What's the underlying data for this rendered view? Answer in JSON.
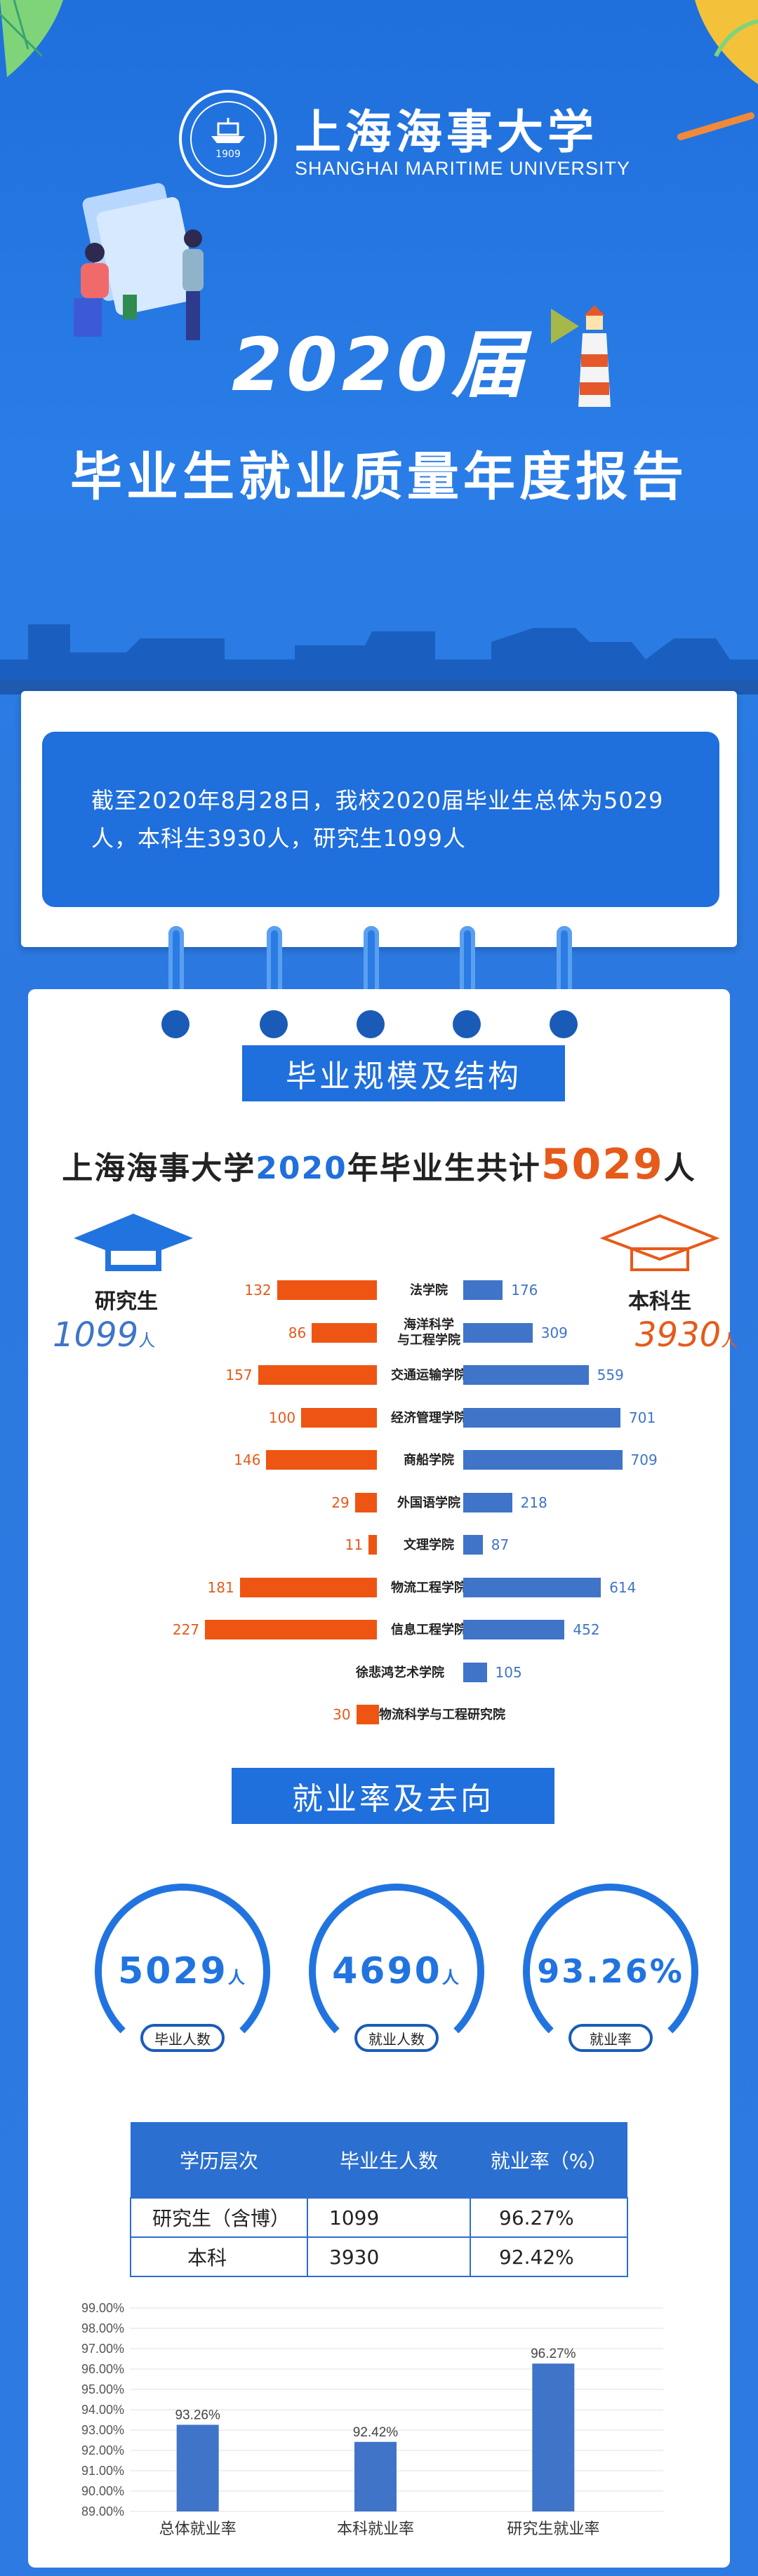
{
  "header": {
    "logo_text": "上海海事大学",
    "logo_year": "1909",
    "university_cn": "上海海事大学",
    "university_en": "SHANGHAI MARITIME UNIVERSITY",
    "year_title": "2020届",
    "report_title": "毕业生就业质量年度报告"
  },
  "intro": {
    "text": "截至2020年8月28日，我校2020届毕业生总体为5029人，本科生3930人，研究生1099人"
  },
  "section1": {
    "title": "毕业规模及结构",
    "total_prefix": "上海海事大学",
    "total_year": "2020",
    "total_middle": "年毕业生共计",
    "total_number": "5029",
    "total_unit": "人",
    "grad_label": "研究生",
    "grad_count": "1099",
    "grad_unit": "人",
    "ug_label": "本科生",
    "ug_count": "3930",
    "ug_unit": "人"
  },
  "colleges": [
    {
      "name": "法学院",
      "grad": 132,
      "ug": 176
    },
    {
      "name": "海洋科学与工程学院",
      "name_line1": "海洋科学",
      "name_line2": "与工程学院",
      "grad": 86,
      "ug": 309
    },
    {
      "name": "交通运输学院",
      "grad": 157,
      "ug": 559
    },
    {
      "name": "经济管理学院",
      "grad": 100,
      "ug": 701
    },
    {
      "name": "商船学院",
      "grad": 146,
      "ug": 709
    },
    {
      "name": "外国语学院",
      "grad": 29,
      "ug": 218
    },
    {
      "name": "文理学院",
      "grad": 11,
      "ug": 87
    },
    {
      "name": "物流工程学院",
      "grad": 181,
      "ug": 614
    },
    {
      "name": "信息工程学院",
      "grad": 227,
      "ug": 452
    },
    {
      "name": "徐悲鸿艺术学院",
      "grad": null,
      "ug": 105
    },
    {
      "name": "物流科学与工程研究院",
      "grad": 30,
      "ug": null
    }
  ],
  "section2": {
    "title": "就业率及去向",
    "circles": [
      {
        "value": "5029",
        "unit": "人",
        "label": "毕业人数"
      },
      {
        "value": "4690",
        "unit": "人",
        "label": "就业人数"
      },
      {
        "value": "93.26%",
        "unit": "",
        "label": "就业率"
      }
    ],
    "table": {
      "headers": [
        "学历层次",
        "毕业生人数",
        "就业率（%）"
      ],
      "rows": [
        [
          "研究生（含博）",
          "1099",
          "96.27%"
        ],
        [
          "本科",
          "3930",
          "92.42%"
        ]
      ]
    }
  },
  "chart_data": {
    "type": "bar",
    "categories": [
      "总体就业率",
      "本科就业率",
      "研究生就业率"
    ],
    "values": [
      93.26,
      92.42,
      96.27
    ],
    "data_labels": [
      "93.26%",
      "92.42%",
      "96.27%"
    ],
    "ylim": [
      89.0,
      99.0
    ],
    "yticks": [
      "89.00%",
      "90.00%",
      "91.00%",
      "92.00%",
      "93.00%",
      "94.00%",
      "95.00%",
      "96.00%",
      "97.00%",
      "98.00%",
      "99.00%"
    ],
    "grid": true,
    "color": "#3f74c9"
  },
  "colors": {
    "primary_blue": "#1f6fdc",
    "orange": "#ee5512",
    "bar_blue": "#3f74c9"
  }
}
